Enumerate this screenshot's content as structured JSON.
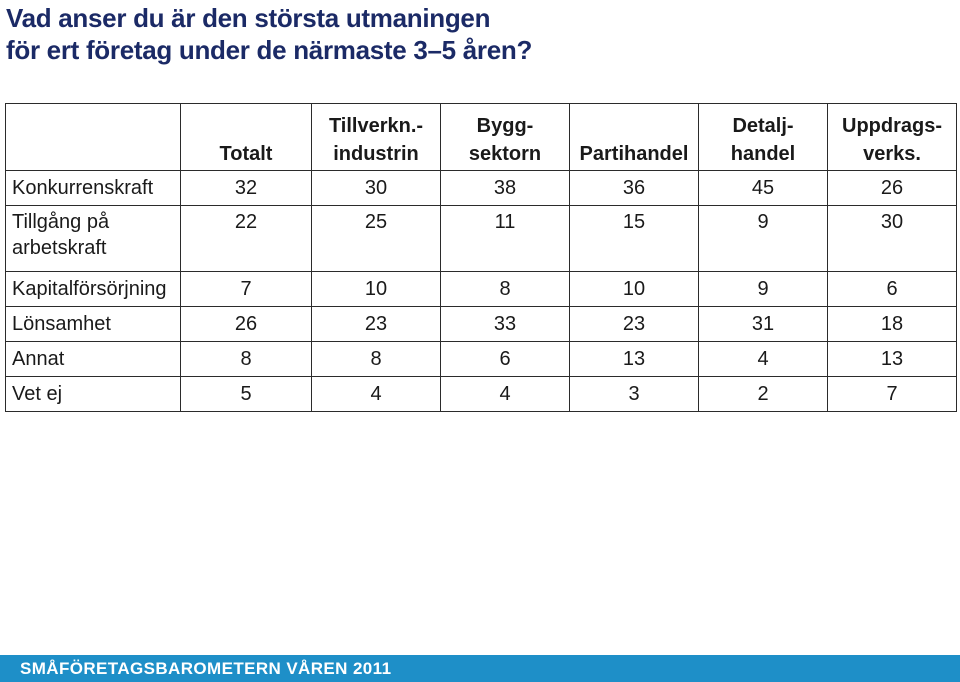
{
  "title": {
    "line1": "Vad anser du är den största utmaningen",
    "line2": "för ert företag under de närmaste 3–5 åren?"
  },
  "table": {
    "headers": [
      {
        "line1": "",
        "line2": "Totalt"
      },
      {
        "line1": "Tillverkn.-",
        "line2": "industrin"
      },
      {
        "line1": "Bygg-",
        "line2": "sektorn"
      },
      {
        "line1": "",
        "line2": "Partihandel"
      },
      {
        "line1": "Detalj-",
        "line2": "handel"
      },
      {
        "line1": "Uppdrags-",
        "line2": "verks."
      }
    ],
    "rows": [
      {
        "label_line1": "Konkurrenskraft",
        "label_line2": "",
        "values": [
          "32",
          "30",
          "38",
          "36",
          "45",
          "26"
        ]
      },
      {
        "label_line1": "Tillgång på",
        "label_line2": "arbetskraft",
        "values": [
          "22",
          "25",
          "11",
          "15",
          "9",
          "30"
        ]
      },
      {
        "label_line1": "Kapitalförsörjning",
        "label_line2": "",
        "values": [
          "7",
          "10",
          "8",
          "10",
          "9",
          "6"
        ]
      },
      {
        "label_line1": "Lönsamhet",
        "label_line2": "",
        "values": [
          "26",
          "23",
          "33",
          "23",
          "31",
          "18"
        ]
      },
      {
        "label_line1": "Annat",
        "label_line2": "",
        "values": [
          "8",
          "8",
          "6",
          "13",
          "4",
          "13"
        ]
      },
      {
        "label_line1": "Vet ej",
        "label_line2": "",
        "values": [
          "5",
          "4",
          "4",
          "3",
          "2",
          "7"
        ]
      }
    ]
  },
  "footer": {
    "text": "SMÅFÖRETAGSBAROMETERN VÅREN 2011",
    "color": "#1e8fc8"
  }
}
